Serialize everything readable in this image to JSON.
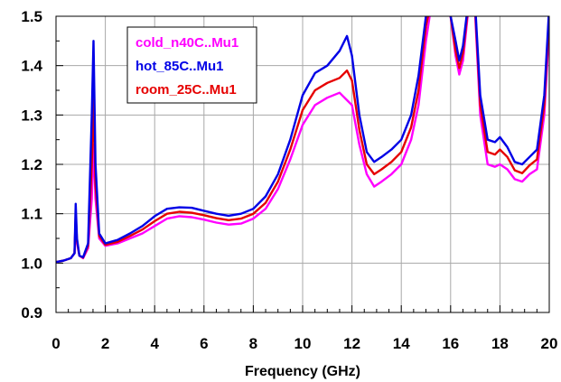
{
  "chart_data": {
    "type": "line",
    "title": "",
    "xlabel": "Frequency (GHz)",
    "ylabel": "",
    "xlim": [
      0,
      20
    ],
    "ylim": [
      0.9,
      1.5
    ],
    "xticks": [
      "0",
      "2",
      "4",
      "6",
      "8",
      "10",
      "12",
      "14",
      "16",
      "18",
      "20"
    ],
    "yticks": [
      "0.9",
      "1.0",
      "1.1",
      "1.2",
      "1.3",
      "1.4",
      "1.5"
    ],
    "grid": true,
    "legend_position": "top-left",
    "series": [
      {
        "name": "cold_n40C..Mu1",
        "color": "#ff00ff",
        "x": [
          0,
          0.3,
          0.6,
          0.75,
          0.8,
          0.85,
          0.95,
          1.1,
          1.3,
          1.45,
          1.52,
          1.6,
          1.75,
          2.0,
          2.5,
          3.0,
          3.5,
          4.0,
          4.5,
          5.0,
          5.5,
          6.0,
          6.5,
          7.0,
          7.5,
          8.0,
          8.5,
          9.0,
          9.5,
          10.0,
          10.5,
          11.0,
          11.5,
          11.8,
          12.0,
          12.3,
          12.6,
          12.9,
          13.2,
          13.6,
          14.0,
          14.4,
          14.7,
          15.0,
          15.3,
          15.7,
          16.0,
          16.2,
          16.35,
          16.5,
          16.65,
          16.8,
          17.0,
          17.2,
          17.5,
          17.8,
          18.0,
          18.3,
          18.6,
          18.9,
          19.2,
          19.5,
          19.8,
          20.0
        ],
        "y": [
          1.002,
          1.005,
          1.01,
          1.02,
          1.09,
          1.04,
          1.015,
          1.01,
          1.03,
          1.13,
          1.24,
          1.13,
          1.05,
          1.035,
          1.04,
          1.05,
          1.06,
          1.075,
          1.09,
          1.095,
          1.093,
          1.088,
          1.082,
          1.078,
          1.08,
          1.09,
          1.11,
          1.15,
          1.21,
          1.28,
          1.32,
          1.335,
          1.345,
          1.33,
          1.32,
          1.24,
          1.18,
          1.155,
          1.165,
          1.18,
          1.2,
          1.25,
          1.32,
          1.45,
          1.55,
          1.55,
          1.5,
          1.42,
          1.382,
          1.41,
          1.48,
          1.55,
          1.5,
          1.3,
          1.2,
          1.195,
          1.2,
          1.19,
          1.17,
          1.165,
          1.18,
          1.19,
          1.3,
          1.48
        ]
      },
      {
        "name": "hot_85C..Mu1",
        "color": "#0000e6",
        "x": [
          0,
          0.3,
          0.6,
          0.75,
          0.8,
          0.85,
          0.95,
          1.1,
          1.3,
          1.45,
          1.52,
          1.6,
          1.75,
          2.0,
          2.5,
          3.0,
          3.5,
          4.0,
          4.5,
          5.0,
          5.5,
          6.0,
          6.5,
          7.0,
          7.5,
          8.0,
          8.5,
          9.0,
          9.5,
          10.0,
          10.5,
          11.0,
          11.5,
          11.8,
          12.0,
          12.3,
          12.6,
          12.9,
          13.2,
          13.6,
          14.0,
          14.4,
          14.7,
          15.0,
          15.3,
          15.7,
          16.0,
          16.2,
          16.35,
          16.5,
          16.65,
          16.8,
          17.0,
          17.2,
          17.5,
          17.8,
          18.0,
          18.3,
          18.6,
          18.9,
          19.2,
          19.5,
          19.8,
          20.0
        ],
        "y": [
          1.002,
          1.005,
          1.01,
          1.02,
          1.12,
          1.05,
          1.015,
          1.012,
          1.04,
          1.3,
          1.45,
          1.2,
          1.06,
          1.04,
          1.047,
          1.06,
          1.075,
          1.095,
          1.11,
          1.113,
          1.112,
          1.106,
          1.1,
          1.096,
          1.1,
          1.11,
          1.135,
          1.18,
          1.25,
          1.34,
          1.385,
          1.4,
          1.43,
          1.46,
          1.42,
          1.3,
          1.225,
          1.205,
          1.215,
          1.23,
          1.25,
          1.3,
          1.38,
          1.5,
          1.55,
          1.55,
          1.5,
          1.45,
          1.41,
          1.44,
          1.5,
          1.55,
          1.52,
          1.34,
          1.25,
          1.245,
          1.255,
          1.235,
          1.205,
          1.2,
          1.215,
          1.23,
          1.34,
          1.52
        ]
      },
      {
        "name": "room_25C..Mu1",
        "color": "#e60000",
        "x": [
          0,
          0.3,
          0.6,
          0.75,
          0.8,
          0.85,
          0.95,
          1.1,
          1.3,
          1.45,
          1.52,
          1.6,
          1.75,
          2.0,
          2.5,
          3.0,
          3.5,
          4.0,
          4.5,
          5.0,
          5.5,
          6.0,
          6.5,
          7.0,
          7.5,
          8.0,
          8.5,
          9.0,
          9.5,
          10.0,
          10.5,
          11.0,
          11.5,
          11.8,
          12.0,
          12.3,
          12.6,
          12.9,
          13.2,
          13.6,
          14.0,
          14.4,
          14.7,
          15.0,
          15.3,
          15.7,
          16.0,
          16.2,
          16.35,
          16.5,
          16.65,
          16.8,
          17.0,
          17.2,
          17.5,
          17.8,
          18.0,
          18.3,
          18.6,
          18.9,
          19.2,
          19.5,
          19.8,
          20.0
        ],
        "y": [
          1.002,
          1.005,
          1.01,
          1.02,
          1.1,
          1.045,
          1.015,
          1.011,
          1.035,
          1.2,
          1.34,
          1.16,
          1.055,
          1.037,
          1.043,
          1.055,
          1.068,
          1.085,
          1.1,
          1.104,
          1.102,
          1.097,
          1.091,
          1.087,
          1.09,
          1.1,
          1.122,
          1.165,
          1.23,
          1.31,
          1.35,
          1.365,
          1.375,
          1.39,
          1.37,
          1.27,
          1.2,
          1.18,
          1.19,
          1.205,
          1.225,
          1.275,
          1.35,
          1.48,
          1.55,
          1.55,
          1.5,
          1.43,
          1.395,
          1.425,
          1.49,
          1.55,
          1.51,
          1.32,
          1.225,
          1.22,
          1.23,
          1.215,
          1.188,
          1.182,
          1.198,
          1.21,
          1.32,
          1.5
        ]
      }
    ]
  }
}
